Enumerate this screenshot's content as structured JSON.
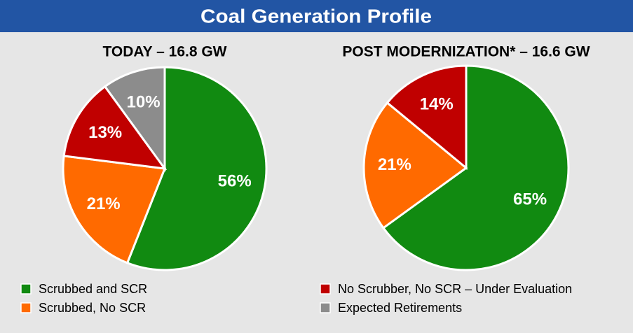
{
  "title": "Coal  Generation Profile",
  "chart_data": [
    {
      "type": "pie",
      "title": "TODAY – 16.8 GW",
      "categories": [
        "Scrubbed and SCR",
        "Scrubbed, No SCR",
        "No Scrubber, No SCR – Under Evaluation",
        "Expected Retirements"
      ],
      "values": [
        56,
        21,
        13,
        10
      ],
      "value_labels": [
        "56%",
        "21%",
        "13%",
        "10%"
      ],
      "colors": [
        "#118a11",
        "#ff6a00",
        "#c00000",
        "#8c8c8c"
      ]
    },
    {
      "type": "pie",
      "title": "POST MODERNIZATION* – 16.6 GW",
      "categories": [
        "Scrubbed and SCR",
        "Scrubbed, No SCR",
        "No Scrubber, No SCR – Under Evaluation"
      ],
      "values": [
        65,
        21,
        14
      ],
      "value_labels": [
        "65%",
        "21%",
        "14%"
      ],
      "colors": [
        "#118a11",
        "#ff6a00",
        "#c00000"
      ]
    }
  ]
}
